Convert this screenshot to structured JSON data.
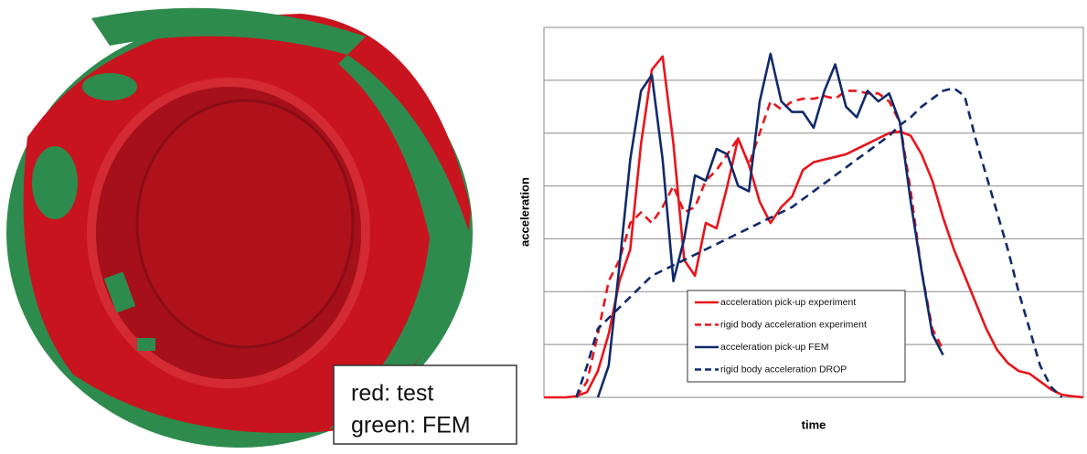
{
  "image_caption": [
    "red: test",
    "green: FEM"
  ],
  "chart_data": {
    "type": "line",
    "x_label": "time",
    "y_label": "acceleration",
    "xlim": [
      0,
      100
    ],
    "ylim": [
      0,
      7
    ],
    "yticks": [
      0,
      1,
      2,
      3,
      4,
      5,
      6,
      7
    ],
    "grid": true,
    "tick_labels": false,
    "legend": "lower center",
    "x": [
      0,
      2,
      4,
      6,
      8,
      10,
      12,
      14,
      16,
      18,
      20,
      22,
      24,
      26,
      28,
      30,
      32,
      34,
      36,
      38,
      40,
      42,
      44,
      46,
      48,
      50,
      52,
      54,
      56,
      58,
      60,
      62,
      64,
      66,
      68,
      70,
      72,
      74,
      76,
      78,
      80,
      82,
      84,
      86,
      88,
      90,
      92,
      94,
      96,
      98,
      100
    ],
    "series": [
      {
        "name": "acceleration pick-up experiment",
        "color": "#e8151b",
        "dash": false,
        "values": [
          0,
          0,
          0,
          0.02,
          0.1,
          0.5,
          1.2,
          2.2,
          2.8,
          4.8,
          6.2,
          6.45,
          4.8,
          2.6,
          2.3,
          3.3,
          3.2,
          4.0,
          4.9,
          4.4,
          3.7,
          3.3,
          3.6,
          3.8,
          4.3,
          4.45,
          4.5,
          4.55,
          4.6,
          4.7,
          4.8,
          4.9,
          5.0,
          5.03,
          4.95,
          4.6,
          4.1,
          3.4,
          2.8,
          2.3,
          1.8,
          1.3,
          0.9,
          0.65,
          0.5,
          0.45,
          0.3,
          0.15,
          0.05,
          0.02,
          0
        ]
      },
      {
        "name": "rigid body acceleration experiment",
        "color": "#e8151b",
        "dash": true,
        "values": [
          null,
          null,
          null,
          0,
          0.3,
          1.2,
          2.2,
          2.6,
          3.3,
          3.5,
          3.3,
          3.6,
          4.0,
          3.5,
          3.6,
          4.1,
          4.3,
          4.6,
          4.9,
          4.4,
          5.0,
          5.6,
          5.45,
          5.6,
          5.65,
          5.65,
          5.7,
          5.65,
          5.8,
          5.8,
          5.75,
          5.75,
          5.6,
          5.2,
          3.9,
          2.4,
          1.3,
          0.9,
          null,
          null,
          null,
          null,
          null,
          null,
          null,
          null,
          null,
          null,
          null,
          null,
          null
        ]
      },
      {
        "name": "acceleration pick-up FEM",
        "color": "#102a6b",
        "dash": false,
        "values": [
          null,
          null,
          null,
          null,
          null,
          0,
          0.6,
          2.5,
          4.5,
          5.8,
          6.1,
          4.5,
          2.2,
          3.0,
          4.2,
          4.1,
          4.7,
          4.6,
          4.0,
          3.9,
          5.6,
          6.5,
          5.6,
          5.4,
          5.4,
          5.1,
          5.8,
          6.3,
          5.5,
          5.3,
          5.8,
          5.6,
          5.75,
          5.2,
          3.7,
          2.4,
          1.2,
          0.8,
          null,
          null,
          null,
          null,
          null,
          null,
          null,
          null,
          null,
          null,
          null,
          null,
          null
        ]
      },
      {
        "name": "rigid body acceleration DROP",
        "color": "#102a6b",
        "dash": true,
        "values": [
          null,
          null,
          null,
          0,
          0.6,
          1.3,
          1.5,
          1.7,
          1.9,
          2.1,
          2.3,
          2.4,
          2.5,
          2.6,
          2.7,
          2.8,
          2.9,
          3.0,
          3.1,
          3.2,
          3.3,
          3.4,
          3.5,
          3.6,
          3.75,
          3.9,
          4.05,
          4.2,
          4.35,
          4.5,
          4.65,
          4.8,
          4.95,
          5.15,
          5.3,
          5.5,
          5.65,
          5.8,
          5.85,
          5.7,
          4.9,
          4.2,
          3.5,
          2.8,
          2.0,
          1.3,
          0.6,
          0.2,
          0,
          null,
          null
        ]
      }
    ]
  }
}
